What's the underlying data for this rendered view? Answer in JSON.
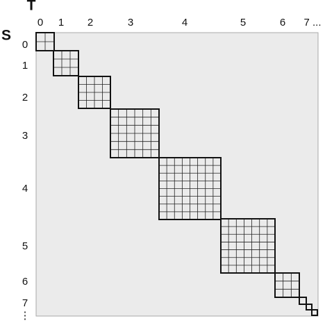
{
  "axes": {
    "column_title": "T",
    "row_title": "S"
  },
  "columns": [
    "0",
    "1",
    "2",
    "3",
    "4",
    "5",
    "6",
    "7 ..."
  ],
  "rows": [
    "0",
    "1",
    "2",
    "3",
    "4",
    "5",
    "6",
    "7",
    "⋮"
  ]
}
